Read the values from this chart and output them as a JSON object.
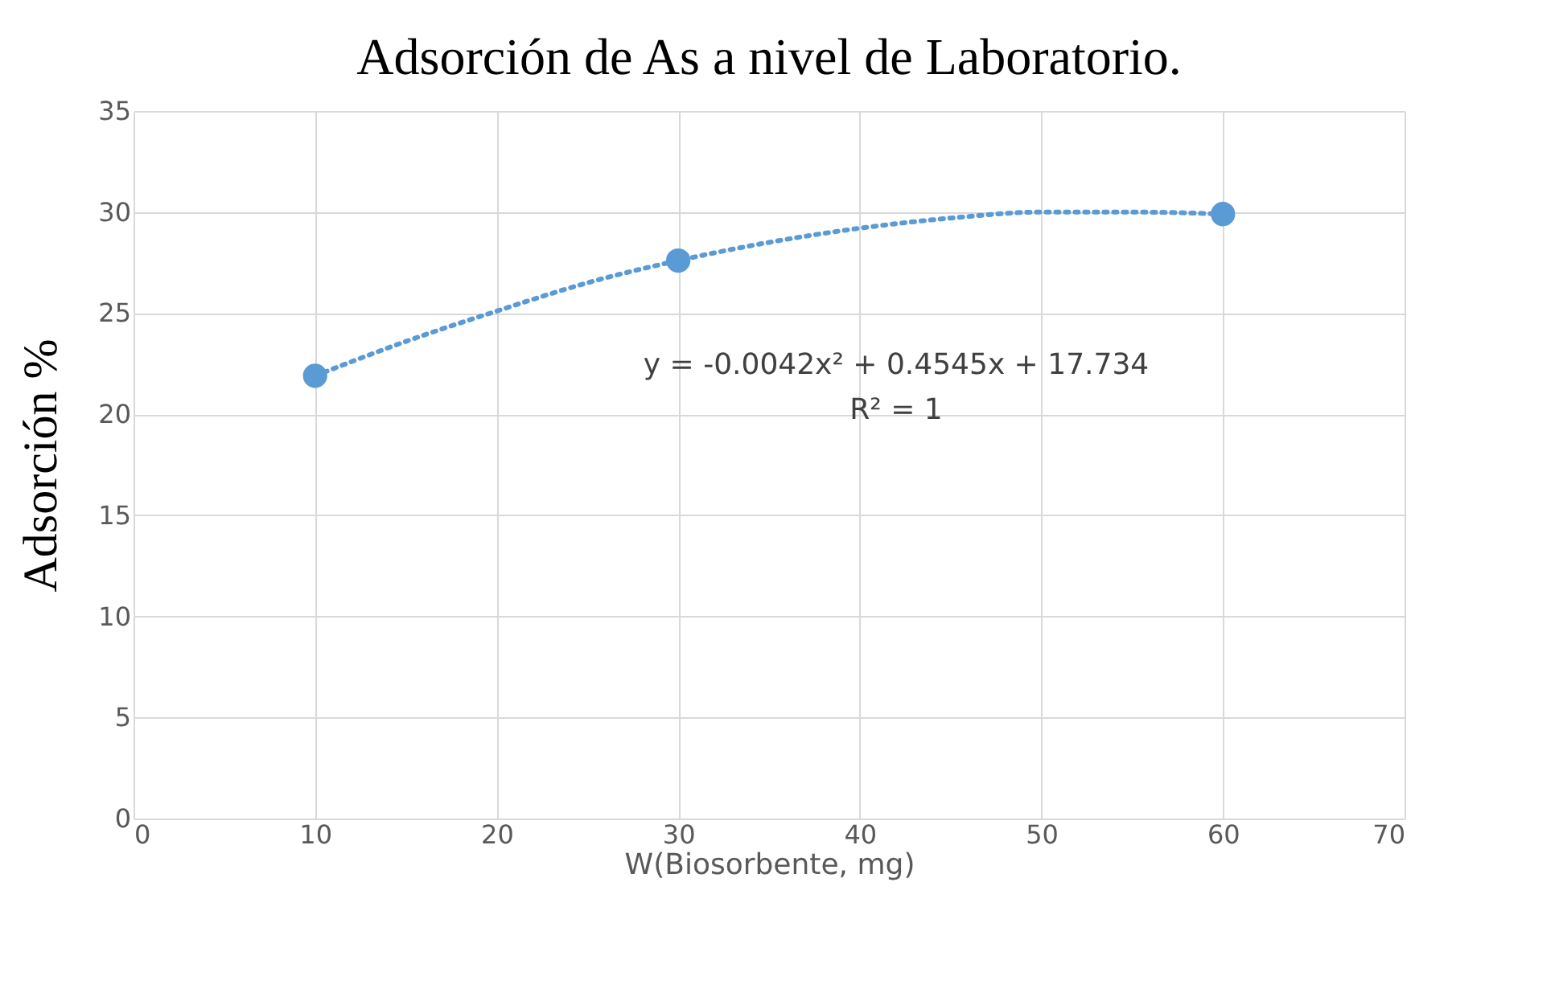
{
  "chart_data": {
    "type": "scatter",
    "title": "Adsorción de As a nivel de Laboratorio.",
    "xlabel": "W(Biosorbente, mg)",
    "ylabel": "Adsorción %",
    "series": [
      {
        "type": "scatter",
        "color": "#5b9bd5",
        "x": [
          10,
          30,
          60
        ],
        "values": [
          21.9,
          27.6,
          29.9
        ],
        "marker": "circle"
      },
      {
        "type": "line",
        "color": "#5b9bd5",
        "line_style": "dotted",
        "marker": "none",
        "x": [
          10,
          15,
          20,
          25,
          30,
          35,
          40,
          45,
          50,
          55,
          60
        ],
        "values": [
          21.9,
          23.6,
          25.1,
          26.5,
          27.6,
          28.5,
          29.2,
          29.7,
          30.0,
          30.0,
          29.9
        ]
      }
    ],
    "annotations": [
      "y = -0.0042x² + 0.4545x + 17.734",
      "R² = 1"
    ],
    "xlim": [
      0,
      70
    ],
    "xticks": [
      0,
      10,
      20,
      30,
      40,
      50,
      60,
      70
    ],
    "ylim": [
      0,
      35
    ],
    "yticks": [
      0,
      5,
      10,
      15,
      20,
      25,
      30,
      35
    ],
    "grid": true
  }
}
